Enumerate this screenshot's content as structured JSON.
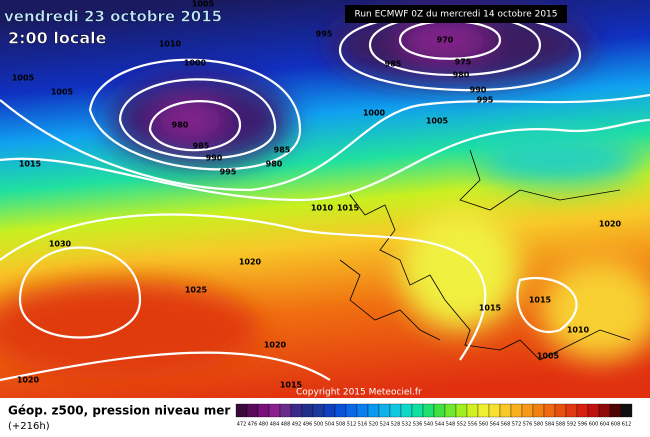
{
  "header": {
    "title": "vendredi 23 octobre 2015",
    "subtitle": "2:00 locale",
    "run": "Run ECMWF 0Z du mercredi 14 octobre 2015"
  },
  "isobar_labels": [
    "1005",
    "1010",
    "995",
    "1000",
    "1005",
    "1005",
    "980",
    "985",
    "990",
    "995",
    "985",
    "980",
    "1000",
    "970",
    "975",
    "985",
    "980",
    "990",
    "995",
    "1005",
    "1015",
    "1010",
    "1015",
    "1030",
    "1020",
    "1020",
    "1025",
    "1015",
    "1015",
    "1010",
    "1005",
    "1020",
    "1020",
    "1015"
  ],
  "copyright": "Copyright 2015 Meteociel.fr",
  "footer": {
    "title": "Géop. z500, pression niveau mer",
    "lead": "(+216h)"
  },
  "colorbar": {
    "labels": [
      472,
      476,
      480,
      484,
      488,
      492,
      496,
      500,
      504,
      508,
      512,
      516,
      520,
      524,
      528,
      532,
      536,
      540,
      544,
      548,
      552,
      556,
      560,
      564,
      568,
      572,
      576,
      580,
      584,
      588,
      592,
      596,
      600,
      604,
      608,
      612
    ],
    "colors": [
      "#3a0a3a",
      "#5a0a5a",
      "#7a107a",
      "#8a2090",
      "#6a2a8a",
      "#3a2a8a",
      "#20308a",
      "#1a3aa0",
      "#1040c0",
      "#0a50d8",
      "#0a68e8",
      "#0a80f0",
      "#0a98f0",
      "#10b0e8",
      "#10c8e0",
      "#10d8c8",
      "#10e0a0",
      "#20e070",
      "#40e040",
      "#70e830",
      "#a0f020",
      "#d0f020",
      "#f0f030",
      "#f8e030",
      "#f8c828",
      "#f8b020",
      "#f89818",
      "#f08010",
      "#f06810",
      "#e85010",
      "#e03810",
      "#d82010",
      "#c01010",
      "#900a0a",
      "#500505",
      "#101010"
    ]
  }
}
